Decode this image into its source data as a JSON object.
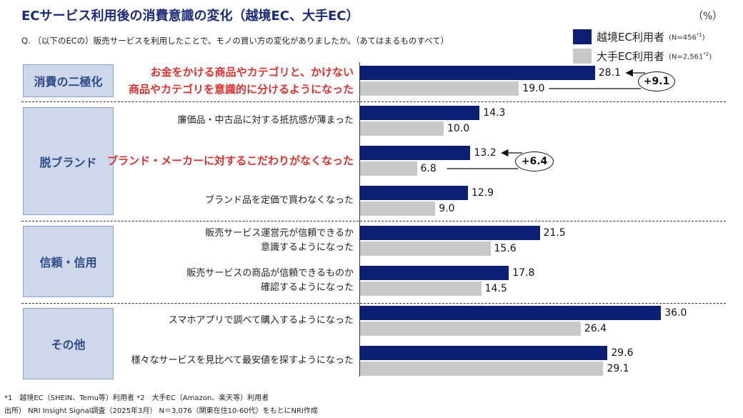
{
  "title": "ECサービス利用後の消費意識の変化（越境EC、大手EC）",
  "unit": "（%）",
  "question": "Q. （以下のECの）販売サービスを利用したことで、モノの買い方の変化がありましたか。（あてはまるものすべて）",
  "legend": [
    {
      "label": "越境EC利用者",
      "note": "N=456",
      "mark": "*1",
      "color": "#0d1f73"
    },
    {
      "label": "大手EC利用者",
      "note": "N=2,561",
      "mark": "*2",
      "color": "#c8c8c8"
    }
  ],
  "categories": [
    {
      "name": "消費の二極化"
    },
    {
      "name": "脱ブランド"
    },
    {
      "name": "信頼・信用"
    },
    {
      "name": "その他"
    }
  ],
  "chart_data": {
    "type": "bar",
    "orientation": "horizontal",
    "xlim": [
      0,
      38
    ],
    "series": [
      {
        "name": "越境EC利用者",
        "values": [
          28.1,
          14.3,
          13.2,
          12.9,
          21.5,
          17.8,
          36.0,
          29.6
        ]
      },
      {
        "name": "大手EC利用者",
        "values": [
          19.0,
          10.0,
          6.8,
          9.0,
          15.6,
          14.5,
          26.4,
          29.1
        ]
      }
    ],
    "value_labels": [
      [
        "28.1",
        "14.3",
        "13.2",
        "12.9",
        "21.5",
        "17.8",
        "36.0",
        "29.6"
      ],
      [
        "19.0",
        "10.0",
        "6.8",
        "9.0",
        "15.6",
        "14.5",
        "26.4",
        "29.1"
      ]
    ],
    "items": [
      {
        "lines": [
          "お金をかける商品やカテゴリと、かけない",
          "商品やカテゴリを意識的に分けるようになった"
        ],
        "highlight": true
      },
      {
        "lines": [
          "廉価品・中古品に対する抵抗感が薄まった"
        ],
        "highlight": false
      },
      {
        "lines": [
          "ブランド・メーカーに対するこだわりがなくなった"
        ],
        "highlight": true
      },
      {
        "lines": [
          "ブランド品を定価で買わなくなった"
        ],
        "highlight": false
      },
      {
        "lines": [
          "販売サービス運営元が信頼できるか",
          "意識するようになった"
        ],
        "highlight": false
      },
      {
        "lines": [
          "販売サービスの商品が信頼できるものか",
          "確認するようになった"
        ],
        "highlight": false
      },
      {
        "lines": [
          "スマホアプリで調べて購入するようになった"
        ],
        "highlight": false
      },
      {
        "lines": [
          "様々なサービスを見比べて最安値を探すようになった"
        ],
        "highlight": false
      }
    ],
    "differences": [
      {
        "item": 0,
        "text": "+9.1"
      },
      {
        "item": 2,
        "text": "+6.4"
      }
    ]
  },
  "footnotes": [
    "*1　越境EC（SHEIN、Temu等）利用者 *2　大手EC（Amazon、楽天等）利用者",
    "出所） NRI Insight Signal調査（2025年3月） N＝3,076（関東在住10-60代）をもとにNRI作成"
  ]
}
